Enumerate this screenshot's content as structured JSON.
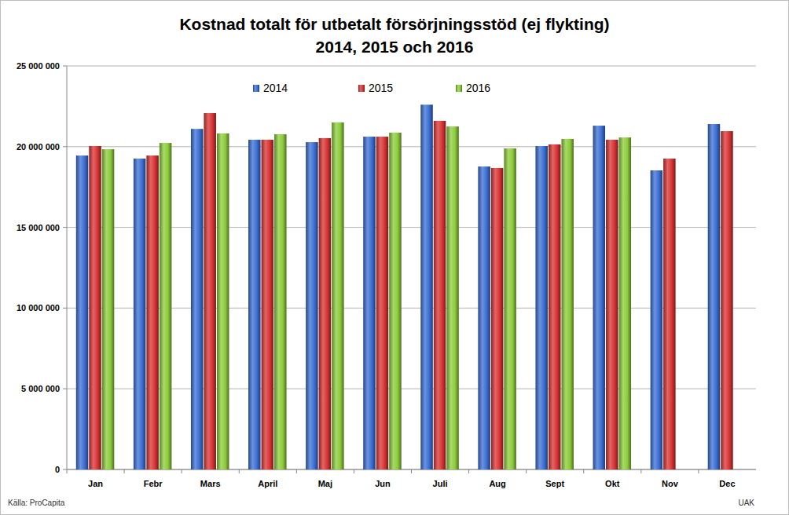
{
  "chart_data": {
    "type": "bar",
    "title": "Kostnad totalt för utbetalt försörjningsstöd (ej flykting)",
    "subtitle": "2014, 2015 och 2016",
    "categories": [
      "Jan",
      "Febr",
      "Mars",
      "April",
      "Maj",
      "Jun",
      "Juli",
      "Aug",
      "Sept",
      "Okt",
      "Nov",
      "Dec"
    ],
    "series": [
      {
        "name": "2014",
        "color": "#3b6fd4",
        "values": [
          19450000,
          19260000,
          21100000,
          20430000,
          20280000,
          20620000,
          22600000,
          18770000,
          20040000,
          21300000,
          18530000,
          21400000
        ]
      },
      {
        "name": "2015",
        "color": "#d93333",
        "values": [
          20040000,
          19450000,
          22080000,
          20430000,
          20530000,
          20620000,
          21600000,
          18680000,
          20140000,
          20430000,
          19260000,
          20960000
        ]
      },
      {
        "name": "2016",
        "color": "#8ccc3a",
        "values": [
          19840000,
          20230000,
          20820000,
          20770000,
          21500000,
          20870000,
          21250000,
          19890000,
          20480000,
          20570000,
          null,
          null
        ]
      }
    ],
    "ylim": [
      0,
      25000000
    ],
    "yticks": [
      {
        "value": 0,
        "label": "0"
      },
      {
        "value": 5000000,
        "label": "5 000 000"
      },
      {
        "value": 10000000,
        "label": "10 000 000"
      },
      {
        "value": 15000000,
        "label": "15 000 000"
      },
      {
        "value": 20000000,
        "label": "20 000 000"
      },
      {
        "value": 25000000,
        "label": "25 000 000"
      }
    ],
    "grid": true,
    "legend": "top",
    "annotations": [
      "Källa: ProCapita",
      "UAK"
    ]
  }
}
